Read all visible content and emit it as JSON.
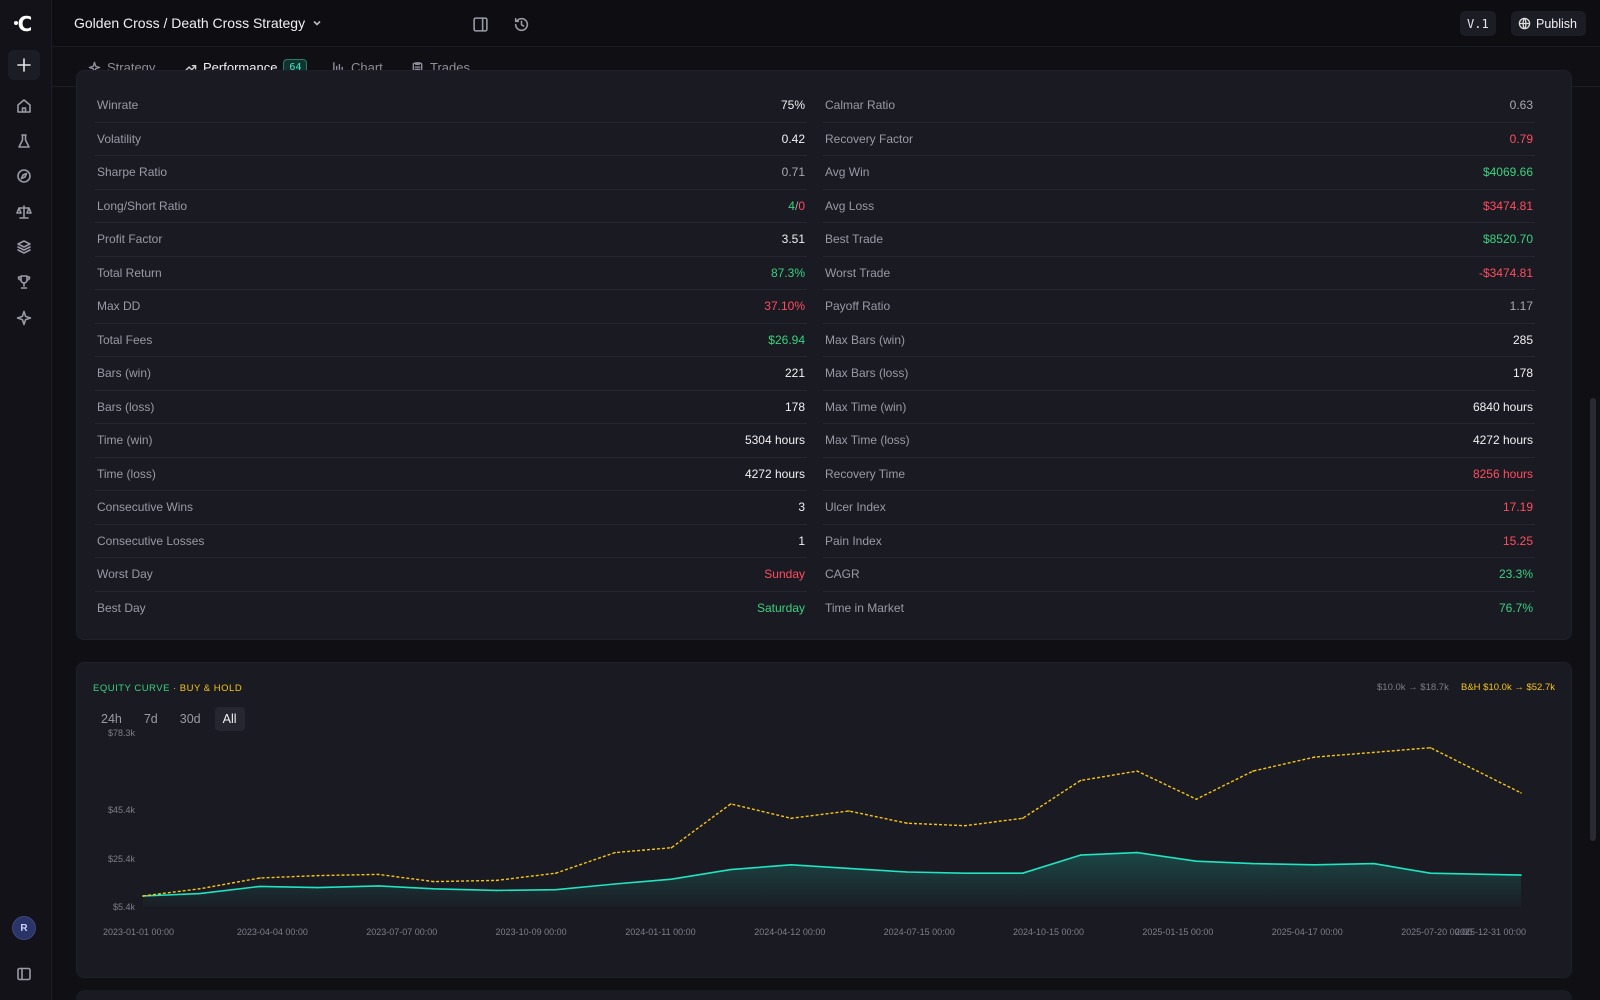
{
  "app": {
    "title": "Golden Cross / Death Cross Strategy",
    "version": "V.1",
    "publish_label": "Publish",
    "avatar_initial": "R"
  },
  "tabs": [
    {
      "label": "Strategy",
      "icon": "sparkle-icon"
    },
    {
      "label": "Performance",
      "icon": "trending-up-icon",
      "badge": "64",
      "active": true
    },
    {
      "label": "Chart",
      "icon": "bar-chart-icon"
    },
    {
      "label": "Trades",
      "icon": "clipboard-icon"
    }
  ],
  "stats_left": [
    {
      "label": "Winrate",
      "value": "75%"
    },
    {
      "label": "Volatility",
      "value": "0.42"
    },
    {
      "label": "Sharpe Ratio",
      "value": "0.71",
      "tone": "muted"
    },
    {
      "label": "Long/Short Ratio",
      "long": "4",
      "sep": "/",
      "short": "0"
    },
    {
      "label": "Profit Factor",
      "value": "3.51"
    },
    {
      "label": "Total Return",
      "value": "87.3%",
      "tone": "positive"
    },
    {
      "label": "Max DD",
      "value": "37.10%",
      "tone": "negative"
    },
    {
      "label": "Total Fees",
      "value": "$26.94",
      "tone": "positive"
    },
    {
      "label": "Bars (win)",
      "value": "221"
    },
    {
      "label": "Bars (loss)",
      "value": "178"
    },
    {
      "label": "Time (win)",
      "value": "5304 hours"
    },
    {
      "label": "Time (loss)",
      "value": "4272 hours"
    },
    {
      "label": "Consecutive Wins",
      "value": "3"
    },
    {
      "label": "Consecutive Losses",
      "value": "1"
    },
    {
      "label": "Worst Day",
      "value": "Sunday",
      "tone": "negative"
    },
    {
      "label": "Best Day",
      "value": "Saturday",
      "tone": "positive"
    }
  ],
  "stats_right": [
    {
      "label": "Calmar Ratio",
      "value": "0.63",
      "tone": "muted"
    },
    {
      "label": "Recovery Factor",
      "value": "0.79",
      "tone": "negative"
    },
    {
      "label": "Avg Win",
      "value": "$4069.66",
      "tone": "positive"
    },
    {
      "label": "Avg Loss",
      "value": "$3474.81",
      "tone": "negative"
    },
    {
      "label": "Best Trade",
      "value": "$8520.70",
      "tone": "positive"
    },
    {
      "label": "Worst Trade",
      "value": "-$3474.81",
      "tone": "negative"
    },
    {
      "label": "Payoff Ratio",
      "value": "1.17",
      "tone": "muted"
    },
    {
      "label": "Max Bars (win)",
      "value": "285"
    },
    {
      "label": "Max Bars (loss)",
      "value": "178"
    },
    {
      "label": "Max Time (win)",
      "value": "6840 hours"
    },
    {
      "label": "Max Time (loss)",
      "value": "4272 hours"
    },
    {
      "label": "Recovery Time",
      "value": "8256 hours",
      "tone": "negative"
    },
    {
      "label": "Ulcer Index",
      "value": "17.19",
      "tone": "negative"
    },
    {
      "label": "Pain Index",
      "value": "15.25",
      "tone": "negative"
    },
    {
      "label": "CAGR",
      "value": "23.3%",
      "tone": "positive"
    },
    {
      "label": "Time in Market",
      "value": "76.7%",
      "tone": "positive"
    }
  ],
  "equity": {
    "label": "EQUITY CURVE",
    "bh_label": "· BUY & HOLD",
    "summary": "$10.0k → $18.7k",
    "bh_summary": "B&H $10.0k → $52.7k",
    "ranges": [
      "24h",
      "7d",
      "30d",
      "All"
    ],
    "active_range": "All"
  },
  "colors": {
    "strategy": "#20e3c2",
    "buy_hold": "#f5c518",
    "positive": "#3ad27e",
    "negative": "#ff4d5e",
    "accent": "#7b6cf6"
  },
  "chart_data": {
    "type": "line",
    "ylabel": "",
    "xlabel": "",
    "y_ticks": [
      "$78.3k",
      "$45.4k",
      "$25.4k",
      "$5.4k"
    ],
    "y_tick_values": [
      78300,
      45400,
      25400,
      5400
    ],
    "ylim": [
      5400,
      78300
    ],
    "x_ticks": [
      "2023-01-01 00:00",
      "2023-04-04 00:00",
      "2023-07-07 00:00",
      "2023-10-09 00:00",
      "2024-01-11 00:00",
      "2024-04-12 00:00",
      "2024-07-15 00:00",
      "2024-10-15 00:00",
      "2025-01-15 00:00",
      "2025-04-17 00:00",
      "2025-07-20 00:00",
      "2025-12-31 00:00"
    ],
    "x": [
      "2023-01-01",
      "2023-02-15",
      "2023-04-04",
      "2023-05-20",
      "2023-07-07",
      "2023-08-20",
      "2023-10-09",
      "2023-11-25",
      "2024-01-11",
      "2024-02-25",
      "2024-04-12",
      "2024-05-30",
      "2024-07-15",
      "2024-08-30",
      "2024-10-15",
      "2024-11-30",
      "2025-01-15",
      "2025-03-01",
      "2025-04-17",
      "2025-06-01",
      "2025-07-20",
      "2025-09-05",
      "2025-10-20",
      "2025-12-31"
    ],
    "series": [
      {
        "name": "EQUITY CURVE",
        "values": [
          10000,
          11000,
          14000,
          13500,
          14200,
          13000,
          12300,
          12600,
          15000,
          17000,
          21000,
          23000,
          21500,
          20000,
          19500,
          19500,
          27000,
          28000,
          24500,
          23500,
          23000,
          23500,
          19500,
          18700
        ]
      },
      {
        "name": "BUY & HOLD",
        "values": [
          10000,
          13000,
          17500,
          18500,
          19000,
          16000,
          16500,
          19500,
          28000,
          30000,
          48000,
          42000,
          45000,
          40000,
          39000,
          42000,
          58000,
          62000,
          50000,
          62000,
          68000,
          70000,
          72000,
          52700
        ]
      }
    ]
  }
}
